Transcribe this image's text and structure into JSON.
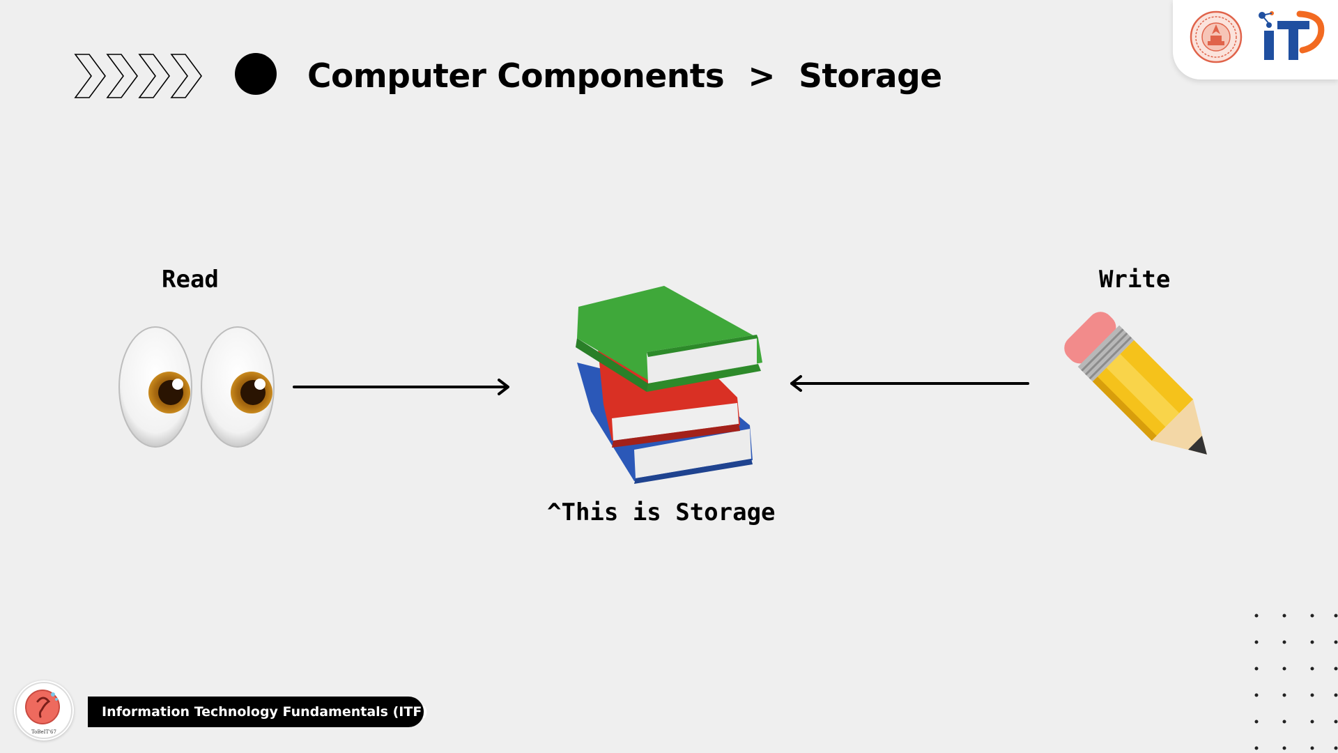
{
  "header": {
    "title_main": "Computer Components",
    "title_separator": ">",
    "title_sub": "Storage"
  },
  "logos": {
    "it_text": "iT",
    "colors": {
      "it_blue": "#1f4fa0",
      "it_orange": "#f26a21",
      "seal_red": "#e0634a"
    }
  },
  "diagram": {
    "read_label": "Read",
    "write_label": "Write",
    "storage_caption": "^This is Storage",
    "icons": [
      "eyes-icon",
      "books-icon",
      "pencil-icon"
    ]
  },
  "footer": {
    "course_title": "Information Technology Fundamentals (ITF)",
    "mascot_caption": "ToBeIT'67"
  }
}
